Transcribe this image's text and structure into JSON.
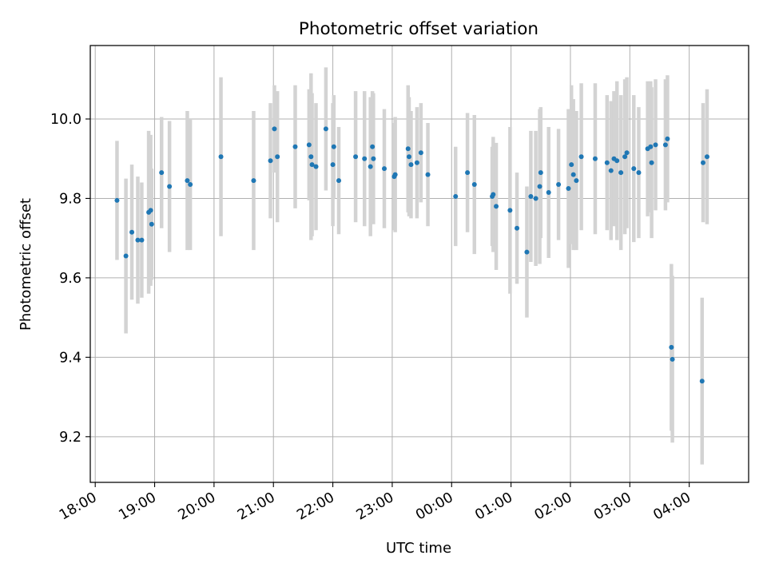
{
  "chart_data": {
    "type": "scatter",
    "title": "Photometric offset variation",
    "xlabel": "UTC time",
    "ylabel": "Photometric offset",
    "x_unit": "UTC time (HH:MM, night spanning midnight)",
    "xlim": [
      "17:55",
      "05:00"
    ],
    "ylim": [
      9.085,
      10.185
    ],
    "grid": true,
    "legend": "none",
    "x_ticks": [
      "18:00",
      "19:00",
      "20:00",
      "21:00",
      "22:00",
      "23:00",
      "00:00",
      "01:00",
      "02:00",
      "03:00",
      "04:00"
    ],
    "y_ticks": [
      9.2,
      9.4,
      9.6,
      9.8,
      10.0
    ],
    "colors": {
      "marker": "#1f77b4",
      "errorbar": "#d3d3d3",
      "grid": "#b0b0b0"
    },
    "series": [
      {
        "x": [
          "18:22",
          "18:31",
          "18:37",
          "18:43",
          "18:47",
          "18:54",
          "18:56",
          "18:57",
          "19:07",
          "19:15",
          "19:33",
          "19:36",
          "20:07",
          "20:40",
          "20:57",
          "21:01",
          "21:04",
          "21:22",
          "21:36",
          "21:38",
          "21:39",
          "21:43",
          "21:53",
          "22:00",
          "22:01",
          "22:06",
          "22:23",
          "22:32",
          "22:38",
          "22:40",
          "22:41",
          "22:52",
          "23:02",
          "23:03",
          "23:16",
          "23:17",
          "23:19",
          "23:25",
          "23:29",
          "23:36",
          "00:04",
          "00:16",
          "00:23",
          "00:41",
          "00:42",
          "00:45",
          "00:59",
          "01:06",
          "01:16",
          "01:20",
          "01:25",
          "01:29",
          "01:30",
          "01:38",
          "01:48",
          "01:58",
          "02:01",
          "02:03",
          "02:06",
          "02:11",
          "02:25",
          "02:37",
          "02:41",
          "02:44",
          "02:47",
          "02:51",
          "02:55",
          "02:57",
          "03:04",
          "03:09",
          "03:18",
          "03:21",
          "03:22",
          "03:26",
          "03:36",
          "03:38",
          "03:42",
          "03:43",
          "04:13",
          "04:14",
          "04:18"
        ],
        "y": [
          9.795,
          9.655,
          9.715,
          9.695,
          9.695,
          9.765,
          9.77,
          9.735,
          9.865,
          9.83,
          9.845,
          9.835,
          9.905,
          9.845,
          9.895,
          9.975,
          9.905,
          9.93,
          9.935,
          9.905,
          9.885,
          9.88,
          9.975,
          9.885,
          9.93,
          9.845,
          9.905,
          9.9,
          9.88,
          9.93,
          9.9,
          9.875,
          9.855,
          9.86,
          9.925,
          9.905,
          9.885,
          9.89,
          9.915,
          9.86,
          9.805,
          9.865,
          9.835,
          9.805,
          9.81,
          9.78,
          9.77,
          9.725,
          9.665,
          9.805,
          9.8,
          9.83,
          9.865,
          9.815,
          9.835,
          9.825,
          9.885,
          9.86,
          9.845,
          9.905,
          9.9,
          9.89,
          9.87,
          9.9,
          9.895,
          9.865,
          9.905,
          9.915,
          9.875,
          9.865,
          9.925,
          9.93,
          9.89,
          9.935,
          9.935,
          9.95,
          9.425,
          9.395,
          9.34,
          9.89,
          9.905
        ],
        "err": [
          0.15,
          0.195,
          0.17,
          0.16,
          0.145,
          0.205,
          0.19,
          0.14,
          0.14,
          0.165,
          0.175,
          0.165,
          0.2,
          0.175,
          0.145,
          0.11,
          0.165,
          0.155,
          0.14,
          0.21,
          0.18,
          0.16,
          0.155,
          0.155,
          0.13,
          0.135,
          0.165,
          0.17,
          0.175,
          0.14,
          0.165,
          0.15,
          0.135,
          0.145,
          0.16,
          0.15,
          0.135,
          0.14,
          0.125,
          0.13,
          0.125,
          0.15,
          0.175,
          0.125,
          0.145,
          0.16,
          0.21,
          0.14,
          0.165,
          0.165,
          0.17,
          0.195,
          0.165,
          0.165,
          0.14,
          0.2,
          0.2,
          0.19,
          0.175,
          0.185,
          0.19,
          0.17,
          0.175,
          0.17,
          0.2,
          0.195,
          0.195,
          0.19,
          0.185,
          0.165,
          0.17,
          0.165,
          0.19,
          0.165,
          0.165,
          0.16,
          0.21,
          0.21,
          0.21,
          0.15,
          0.17
        ]
      }
    ]
  }
}
